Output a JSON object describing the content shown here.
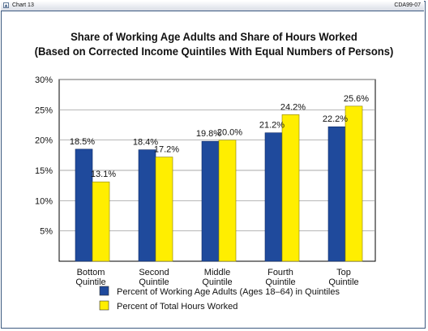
{
  "header": {
    "label": "Chart 13",
    "code": "CDA99-07"
  },
  "colors": {
    "series1": "#1f4a9c",
    "series2": "#ffee00",
    "frame": "#3d5a80"
  },
  "chart_data": {
    "type": "bar",
    "title": "Share of Working Age Adults and Share of Hours Worked",
    "subtitle": "(Based on Corrected Income Quintiles With Equal Numbers of Persons)",
    "categories": [
      [
        "Bottom",
        "Quintile"
      ],
      [
        "Second",
        "Quintile"
      ],
      [
        "Middle",
        "Quintile"
      ],
      [
        "Fourth",
        "Quintile"
      ],
      [
        "Top",
        "Quintile"
      ]
    ],
    "series": [
      {
        "name": "Percent of Working Age Adults (Ages 18–64) in Quintiles",
        "values": [
          18.5,
          18.4,
          19.8,
          21.2,
          22.2
        ],
        "labels": [
          "18.5%",
          "18.4%",
          "19.8%",
          "21.2%",
          "22.2%"
        ],
        "color": "#1f4a9c"
      },
      {
        "name": "Percent of Total Hours Worked",
        "values": [
          13.1,
          17.2,
          20.0,
          24.2,
          25.6
        ],
        "labels": [
          "13.1%",
          "17.2%",
          "20.0%",
          "24.2%",
          "25.6%"
        ],
        "color": "#ffee00"
      }
    ],
    "yticks": [
      "5%",
      "10%",
      "15%",
      "20%",
      "25%",
      "30%"
    ],
    "ylim": [
      0,
      30
    ],
    "grid": true,
    "legend": "bottom-center"
  }
}
